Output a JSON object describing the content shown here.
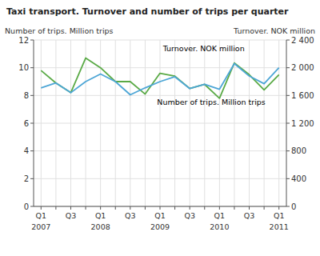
{
  "chart_data": {
    "type": "line",
    "title": "Taxi transport. Turnover and number of trips per quarter",
    "ylabel": "Number of trips. Million trips",
    "y2label": "Turnover. NOK million",
    "categories": [
      "Q1",
      null,
      "Q3",
      null,
      "Q1",
      null,
      "Q3",
      null,
      "Q1",
      null,
      "Q3",
      null,
      "Q1",
      null,
      "Q3",
      null,
      "Q1"
    ],
    "series": [
      {
        "color": "#5aaa46",
        "axis": "y",
        "values": [
          9.8,
          8.9,
          8.2,
          10.7,
          10.0,
          9.0,
          9.0,
          8.1,
          9.6,
          9.4,
          8.5,
          8.8,
          7.8,
          10.35,
          9.5,
          8.4,
          9.5
        ]
      },
      {
        "color": "#4da6d6",
        "axis": "y2",
        "values": [
          1710,
          1780,
          1640,
          1800,
          1910,
          1800,
          1610,
          1710,
          1800,
          1870,
          1700,
          1760,
          1690,
          2060,
          1880,
          1770,
          2000
        ]
      }
    ],
    "ylim": [
      0,
      12
    ],
    "yticks": [
      0,
      2,
      4,
      6,
      8,
      10,
      12
    ],
    "y2lim": [
      0,
      2400
    ],
    "y2ticks": [
      0,
      400,
      800,
      {
        "value": 1200,
        "label": "1 200"
      },
      {
        "value": 1600,
        "label": "1 600"
      },
      {
        "value": 2000,
        "label": "2 000"
      },
      {
        "value": 2400,
        "label": "2 400"
      }
    ],
    "grid": true,
    "annotations": [
      {
        "text": "Turnover. NOK million",
        "x": 8.2,
        "y": 11.2
      },
      {
        "text": "Number of trips. Million trips",
        "x": 7.8,
        "y": 7.3
      },
      {
        "text": "2007",
        "x": 0
      },
      {
        "text": "2008",
        "x": 4
      },
      {
        "text": "2009",
        "x": 8
      },
      {
        "text": "2010",
        "x": 12
      },
      {
        "text": "2011",
        "x": 16
      }
    ]
  }
}
